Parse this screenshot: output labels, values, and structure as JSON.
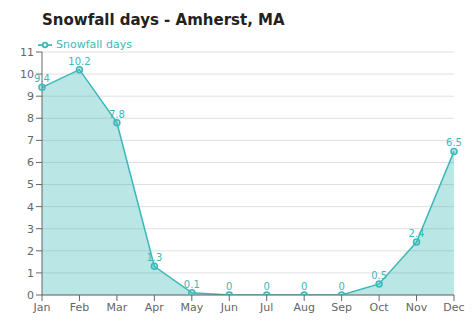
{
  "chart_data": {
    "type": "area",
    "title": "Snowfall days - Amherst, MA",
    "categories": [
      "Jan",
      "Feb",
      "Mar",
      "Apr",
      "May",
      "Jun",
      "Jul",
      "Aug",
      "Sep",
      "Oct",
      "Nov",
      "Dec"
    ],
    "series": [
      {
        "name": "Snowfall days",
        "color": "#3db8b8",
        "marker": "circle",
        "values": [
          9.4,
          10.2,
          7.8,
          1.3,
          0.1,
          0,
          0,
          0,
          0,
          0.5,
          2.4,
          6.5
        ]
      }
    ],
    "ylim": [
      0,
      11
    ],
    "yticks": [
      0,
      1,
      2,
      3,
      4,
      5,
      6,
      7,
      8,
      9,
      10,
      11
    ],
    "grid": true,
    "legend": "upper left",
    "data_labels": true
  }
}
